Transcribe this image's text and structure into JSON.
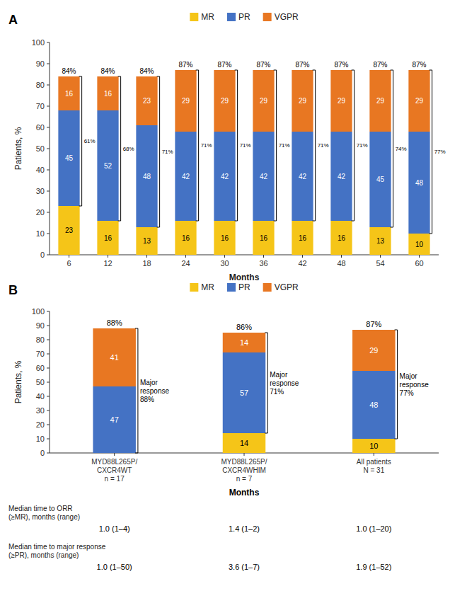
{
  "chart_data": [
    {
      "type": "bar",
      "stacked": true,
      "title": "A",
      "categories": [
        "6",
        "12",
        "18",
        "24",
        "30",
        "36",
        "42",
        "48",
        "54",
        "60"
      ],
      "series": [
        {
          "name": "MR",
          "color": "#F5C518",
          "values": [
            23,
            16,
            13,
            16,
            16,
            16,
            16,
            16,
            13,
            10
          ]
        },
        {
          "name": "PR",
          "color": "#4472C4",
          "values": [
            45,
            52,
            48,
            42,
            42,
            42,
            42,
            42,
            45,
            48
          ]
        },
        {
          "name": "VGPR",
          "color": "#E87722",
          "values": [
            16,
            16,
            23,
            29,
            29,
            29,
            29,
            29,
            29,
            29
          ]
        }
      ],
      "orr_labels": [
        "84%",
        "84%",
        "84%",
        "87%",
        "87%",
        "87%",
        "87%",
        "87%",
        "87%",
        "87%"
      ],
      "major_response_labels": [
        "61%",
        "68%",
        "71%",
        "71%",
        "71%",
        "71%",
        "71%",
        "71%",
        "74%",
        "77%"
      ],
      "xlabel": "Months",
      "ylabel": "Patients, %",
      "ylim": [
        0,
        100
      ],
      "yticks": [
        0,
        10,
        20,
        30,
        40,
        50,
        60,
        70,
        80,
        90,
        100
      ],
      "grid": false,
      "legend": "top",
      "data_labels": true
    },
    {
      "type": "bar",
      "stacked": true,
      "title": "B",
      "categories": [
        "MYD88L265P/\nCXCR4WT\nn = 17",
        "MYD88L265P/\nCXCR4WHIM\nn = 7",
        "All patients\nN = 31"
      ],
      "series": [
        {
          "name": "MR",
          "color": "#F5C518",
          "values": [
            0,
            14,
            10
          ]
        },
        {
          "name": "PR",
          "color": "#4472C4",
          "values": [
            47,
            57,
            48
          ]
        },
        {
          "name": "VGPR",
          "color": "#E87722",
          "values": [
            41,
            14,
            29
          ]
        }
      ],
      "orr_labels": [
        "88%",
        "86%",
        "87%"
      ],
      "major_response_labels": [
        "Major\nresponse\n88%",
        "Major\nresponse\n71%",
        "Major\nresponse\n77%"
      ],
      "ylabel": "Patients, %",
      "ylim": [
        0,
        100
      ],
      "yticks": [
        0,
        10,
        20,
        30,
        40,
        50,
        60,
        70,
        80,
        90,
        100
      ],
      "grid": false,
      "legend": "top",
      "data_labels": true,
      "table": {
        "header": "Months",
        "row_labels": [
          "Median time to ORR\n(≥MR), months (range)",
          "Median time to major response\n(≥PR), months (range)"
        ],
        "columns": [
          [
            "1.0 (1–4)",
            "1.0 (1–50)"
          ],
          [
            "1.4 (1–2)",
            "3.6 (1–7)"
          ],
          [
            "1.0 (1–20)",
            "1.9 (1–52)"
          ]
        ]
      }
    }
  ]
}
